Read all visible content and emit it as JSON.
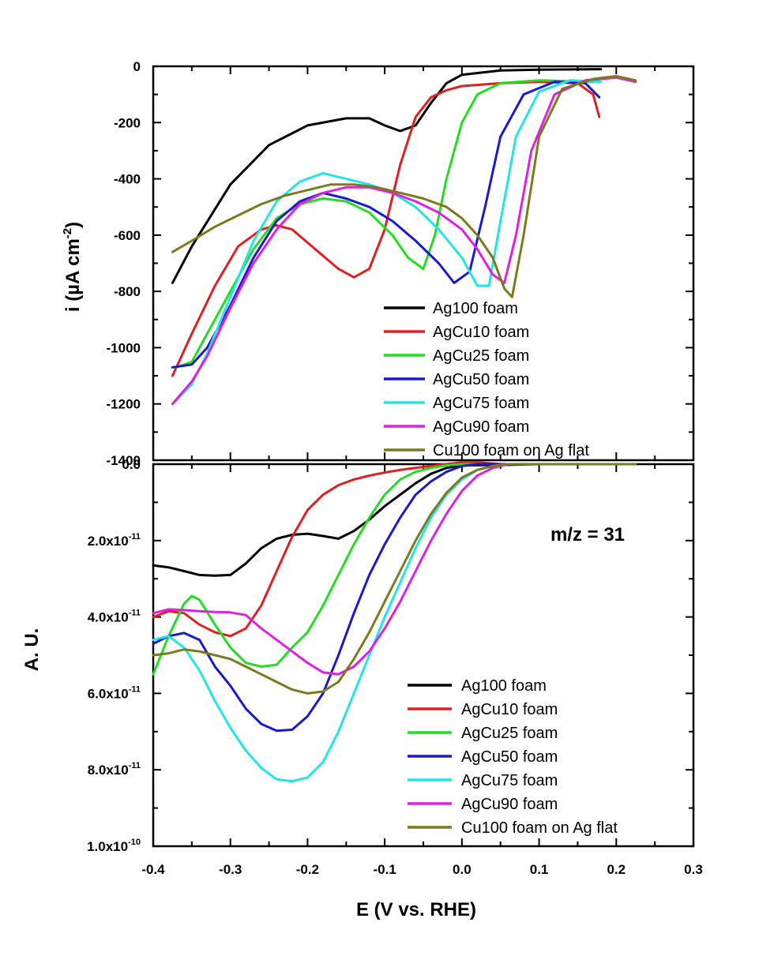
{
  "chart_data": [
    {
      "type": "line",
      "panel": "top",
      "ylabel": "i (µA cm-2)",
      "ylabel_main": "i (",
      "ylabel_mu": "µ",
      "ylabel_unit": "A cm",
      "ylabel_sup": "-2",
      "ylabel_close": ")",
      "ylim": [
        -1400,
        0
      ],
      "xlim": [
        -0.4,
        0.3
      ],
      "yticks": [
        0,
        -200,
        -400,
        -600,
        -800,
        -1000,
        -1200,
        -1400
      ],
      "ytick_labels": [
        "0",
        "-200",
        "-400",
        "-600",
        "-800",
        "-1000",
        "-1200",
        "-1400"
      ],
      "legend_position": "bottom-right",
      "series": [
        {
          "name": "Ag100 foam",
          "color": "#000000",
          "x": [
            -0.375,
            -0.35,
            -0.3,
            -0.25,
            -0.2,
            -0.15,
            -0.12,
            -0.1,
            -0.08,
            -0.06,
            -0.04,
            -0.02,
            0.0,
            0.05,
            0.1,
            0.18
          ],
          "y": [
            -770,
            -640,
            -420,
            -280,
            -210,
            -185,
            -185,
            -210,
            -230,
            -210,
            -130,
            -60,
            -30,
            -15,
            -12,
            -10
          ]
        },
        {
          "name": "AgCu10 foam",
          "color": "#e02020",
          "x": [
            -0.375,
            -0.35,
            -0.32,
            -0.29,
            -0.26,
            -0.24,
            -0.22,
            -0.19,
            -0.16,
            -0.14,
            -0.12,
            -0.1,
            -0.08,
            -0.06,
            -0.04,
            -0.02,
            0.0,
            0.05,
            0.1,
            0.15,
            0.17,
            0.178
          ],
          "y": [
            -1100,
            -950,
            -780,
            -640,
            -580,
            -565,
            -580,
            -650,
            -720,
            -750,
            -720,
            -580,
            -350,
            -180,
            -110,
            -85,
            -70,
            -60,
            -55,
            -60,
            -100,
            -180
          ]
        },
        {
          "name": "AgCu25 foam",
          "color": "#22dd22",
          "x": [
            -0.37,
            -0.35,
            -0.33,
            -0.3,
            -0.27,
            -0.24,
            -0.21,
            -0.18,
            -0.15,
            -0.12,
            -0.09,
            -0.07,
            -0.05,
            -0.035,
            -0.02,
            0.0,
            0.02,
            0.05,
            0.1,
            0.17
          ],
          "y": [
            -1070,
            -1050,
            -950,
            -800,
            -650,
            -540,
            -490,
            -470,
            -480,
            -520,
            -600,
            -680,
            -720,
            -600,
            -400,
            -200,
            -100,
            -60,
            -50,
            -55
          ]
        },
        {
          "name": "AgCu50 foam",
          "color": "#1a1acc",
          "x": [
            -0.375,
            -0.35,
            -0.33,
            -0.3,
            -0.27,
            -0.24,
            -0.21,
            -0.18,
            -0.15,
            -0.12,
            -0.09,
            -0.06,
            -0.03,
            -0.01,
            0.01,
            0.03,
            0.05,
            0.08,
            0.12,
            0.16,
            0.178
          ],
          "y": [
            -1070,
            -1060,
            -1000,
            -850,
            -680,
            -550,
            -480,
            -450,
            -470,
            -500,
            -550,
            -620,
            -700,
            -770,
            -730,
            -500,
            -250,
            -100,
            -55,
            -60,
            -110
          ]
        },
        {
          "name": "AgCu75 foam",
          "color": "#22e5e5",
          "x": [
            -0.375,
            -0.35,
            -0.33,
            -0.3,
            -0.27,
            -0.24,
            -0.21,
            -0.18,
            -0.15,
            -0.12,
            -0.09,
            -0.06,
            -0.03,
            0.0,
            0.02,
            0.035,
            0.05,
            0.07,
            0.1,
            0.14,
            0.18
          ],
          "y": [
            -1200,
            -1130,
            -1020,
            -820,
            -620,
            -480,
            -410,
            -380,
            -400,
            -420,
            -450,
            -500,
            -580,
            -680,
            -780,
            -780,
            -550,
            -250,
            -90,
            -50,
            -55
          ]
        },
        {
          "name": "AgCu90 foam",
          "color": "#e020e0",
          "x": [
            -0.375,
            -0.35,
            -0.33,
            -0.3,
            -0.27,
            -0.24,
            -0.21,
            -0.18,
            -0.15,
            -0.12,
            -0.09,
            -0.06,
            -0.03,
            0.0,
            0.02,
            0.04,
            0.055,
            0.07,
            0.09,
            0.12,
            0.16,
            0.2,
            0.225
          ],
          "y": [
            -1200,
            -1120,
            -1030,
            -860,
            -700,
            -580,
            -490,
            -450,
            -430,
            -430,
            -450,
            -480,
            -520,
            -580,
            -650,
            -740,
            -770,
            -600,
            -300,
            -100,
            -50,
            -40,
            -55
          ]
        },
        {
          "name": "Cu100 foam on Ag flat",
          "color": "#7a7a1e",
          "x": [
            -0.375,
            -0.35,
            -0.32,
            -0.29,
            -0.26,
            -0.23,
            -0.2,
            -0.17,
            -0.14,
            -0.11,
            -0.08,
            -0.05,
            -0.02,
            0.0,
            0.02,
            0.04,
            0.055,
            0.065,
            0.08,
            0.1,
            0.13,
            0.17,
            0.2,
            0.225
          ],
          "y": [
            -660,
            -620,
            -570,
            -530,
            -490,
            -460,
            -440,
            -420,
            -420,
            -430,
            -450,
            -470,
            -500,
            -540,
            -600,
            -680,
            -790,
            -820,
            -600,
            -250,
            -80,
            -45,
            -35,
            -50
          ]
        }
      ]
    },
    {
      "type": "line",
      "panel": "bottom",
      "xlabel": "E (V vs. RHE)",
      "ylabel": "A. U.",
      "annotation": "m/z = 31",
      "xlim": [
        -0.4,
        0.3
      ],
      "ylim": [
        1e-10,
        0
      ],
      "xticks": [
        -0.4,
        -0.3,
        -0.2,
        -0.1,
        0.0,
        0.1,
        0.2,
        0.3
      ],
      "xtick_labels": [
        "-0.4",
        "-0.3",
        "-0.2",
        "-0.1",
        "0.0",
        "0.1",
        "0.2",
        "0.3"
      ],
      "yticks": [
        0,
        2e-11,
        4e-11,
        6e-11,
        8e-11,
        1e-10
      ],
      "ytick_labels": [
        {
          "base": "0.0",
          "sup": ""
        },
        {
          "base": "2.0x10",
          "sup": "-11"
        },
        {
          "base": "4.0x10",
          "sup": "-11"
        },
        {
          "base": "6.0x10",
          "sup": "-11"
        },
        {
          "base": "8.0x10",
          "sup": "-11"
        },
        {
          "base": "1.0x10",
          "sup": "-10"
        }
      ],
      "legend_position": "bottom-right",
      "series": [
        {
          "name": "Ag100 foam",
          "color": "#000000",
          "x": [
            -0.4,
            -0.38,
            -0.36,
            -0.34,
            -0.32,
            -0.3,
            -0.28,
            -0.26,
            -0.24,
            -0.22,
            -0.2,
            -0.18,
            -0.16,
            -0.14,
            -0.12,
            -0.1,
            -0.08,
            -0.06,
            -0.04,
            -0.02,
            0.0,
            0.05,
            0.1,
            0.15,
            0.2,
            0.225
          ],
          "y": [
            2.65e-11,
            2.7e-11,
            2.8e-11,
            2.9e-11,
            2.92e-11,
            2.9e-11,
            2.6e-11,
            2.2e-11,
            1.95e-11,
            1.85e-11,
            1.82e-11,
            1.88e-11,
            1.95e-11,
            1.75e-11,
            1.45e-11,
            1.1e-11,
            8e-12,
            5e-12,
            2.5e-12,
            1e-12,
            3e-13,
            2e-13,
            0.0,
            0.0,
            0.0,
            0.0
          ]
        },
        {
          "name": "AgCu10 foam",
          "color": "#e02020",
          "x": [
            -0.4,
            -0.38,
            -0.36,
            -0.34,
            -0.32,
            -0.3,
            -0.28,
            -0.26,
            -0.24,
            -0.22,
            -0.2,
            -0.18,
            -0.16,
            -0.14,
            -0.12,
            -0.1,
            -0.08,
            -0.06,
            -0.04,
            -0.02,
            0.0,
            0.02,
            0.05,
            0.1,
            0.15,
            0.2,
            0.225
          ],
          "y": [
            4e-11,
            3.85e-11,
            3.9e-11,
            4.2e-11,
            4.4e-11,
            4.5e-11,
            4.3e-11,
            3.7e-11,
            2.8e-11,
            1.9e-11,
            1.2e-11,
            8e-12,
            5.5e-12,
            4e-12,
            3e-12,
            2.2e-12,
            1.5e-12,
            1e-12,
            5e-13,
            0.0,
            -5e-13,
            -5e-13,
            0.0,
            0.0,
            0.0,
            0.0,
            0.0
          ]
        },
        {
          "name": "AgCu25 foam",
          "color": "#22dd22",
          "x": [
            -0.4,
            -0.38,
            -0.36,
            -0.35,
            -0.34,
            -0.32,
            -0.3,
            -0.28,
            -0.26,
            -0.24,
            -0.22,
            -0.2,
            -0.18,
            -0.16,
            -0.14,
            -0.12,
            -0.1,
            -0.08,
            -0.06,
            -0.04,
            -0.02,
            0.0,
            0.05,
            0.1,
            0.15,
            0.2,
            0.225
          ],
          "y": [
            5.5e-11,
            4.5e-11,
            3.65e-11,
            3.45e-11,
            3.55e-11,
            4.2e-11,
            4.8e-11,
            5.2e-11,
            5.3e-11,
            5.25e-11,
            4.8e-11,
            4.4e-11,
            3.7e-11,
            2.9e-11,
            2.1e-11,
            1.4e-11,
            8e-12,
            4e-12,
            2e-12,
            1e-12,
            3e-13,
            0.0,
            0.0,
            0.0,
            0.0,
            0.0,
            0.0
          ]
        },
        {
          "name": "AgCu50 foam",
          "color": "#1a1acc",
          "x": [
            -0.4,
            -0.38,
            -0.36,
            -0.34,
            -0.32,
            -0.3,
            -0.28,
            -0.26,
            -0.24,
            -0.22,
            -0.2,
            -0.18,
            -0.16,
            -0.14,
            -0.12,
            -0.1,
            -0.08,
            -0.06,
            -0.04,
            -0.02,
            0.0,
            0.02,
            0.05,
            0.1,
            0.15,
            0.2,
            0.225
          ],
          "y": [
            4.7e-11,
            4.5e-11,
            4.42e-11,
            4.6e-11,
            5.3e-11,
            5.8e-11,
            6.4e-11,
            6.8e-11,
            6.98e-11,
            6.95e-11,
            6.6e-11,
            6e-11,
            5e-11,
            3.9e-11,
            2.9e-11,
            2.1e-11,
            1.4e-11,
            8e-12,
            4.5e-12,
            2e-12,
            5e-13,
            0.0,
            0.0,
            0.0,
            0.0,
            0.0,
            0.0
          ]
        },
        {
          "name": "AgCu75 foam",
          "color": "#22e5e5",
          "x": [
            -0.4,
            -0.38,
            -0.36,
            -0.34,
            -0.32,
            -0.3,
            -0.28,
            -0.26,
            -0.24,
            -0.22,
            -0.2,
            -0.18,
            -0.16,
            -0.14,
            -0.12,
            -0.1,
            -0.08,
            -0.06,
            -0.04,
            -0.02,
            0.0,
            0.02,
            0.04,
            0.06,
            0.1,
            0.15,
            0.2,
            0.225
          ],
          "y": [
            4.6e-11,
            4.5e-11,
            4.8e-11,
            5.4e-11,
            6.2e-11,
            6.9e-11,
            7.5e-11,
            7.95e-11,
            8.25e-11,
            8.3e-11,
            8.2e-11,
            7.8e-11,
            7e-11,
            6e-11,
            5e-11,
            4e-11,
            3.1e-11,
            2.2e-11,
            1.4e-11,
            8e-12,
            4e-12,
            1.5e-12,
            5e-13,
            0.0,
            0.0,
            0.0,
            0.0,
            0.0
          ]
        },
        {
          "name": "AgCu90 foam",
          "color": "#e020e0",
          "x": [
            -0.4,
            -0.38,
            -0.36,
            -0.34,
            -0.32,
            -0.3,
            -0.28,
            -0.26,
            -0.24,
            -0.22,
            -0.2,
            -0.18,
            -0.16,
            -0.14,
            -0.12,
            -0.1,
            -0.08,
            -0.06,
            -0.04,
            -0.02,
            0.0,
            0.02,
            0.04,
            0.06,
            0.1,
            0.15,
            0.2,
            0.225
          ],
          "y": [
            3.9e-11,
            3.8e-11,
            3.82e-11,
            3.85e-11,
            3.87e-11,
            3.88e-11,
            3.95e-11,
            4.3e-11,
            4.6e-11,
            4.9e-11,
            5.2e-11,
            5.45e-11,
            5.5e-11,
            5.3e-11,
            4.9e-11,
            4.3e-11,
            3.6e-11,
            2.8e-11,
            2e-11,
            1.3e-11,
            7e-12,
            3e-12,
            1e-12,
            0.0,
            0.0,
            0.0,
            0.0,
            0.0
          ]
        },
        {
          "name": "Cu100 foam on Ag flat",
          "color": "#7a7a1e",
          "x": [
            -0.4,
            -0.38,
            -0.36,
            -0.34,
            -0.32,
            -0.3,
            -0.28,
            -0.26,
            -0.24,
            -0.22,
            -0.2,
            -0.18,
            -0.16,
            -0.14,
            -0.12,
            -0.1,
            -0.08,
            -0.06,
            -0.04,
            -0.02,
            0.0,
            0.02,
            0.04,
            0.06,
            0.1,
            0.15,
            0.2,
            0.225
          ],
          "y": [
            5e-11,
            4.95e-11,
            4.85e-11,
            4.9e-11,
            5e-11,
            5.1e-11,
            5.3e-11,
            5.5e-11,
            5.7e-11,
            5.9e-11,
            6e-11,
            5.95e-11,
            5.7e-11,
            5.1e-11,
            4.4e-11,
            3.6e-11,
            2.8e-11,
            2e-11,
            1.3e-11,
            7.5e-12,
            3.5e-12,
            1.5e-12,
            5e-13,
            0.0,
            0.0,
            0.0,
            0.0,
            0.0
          ]
        }
      ]
    }
  ]
}
